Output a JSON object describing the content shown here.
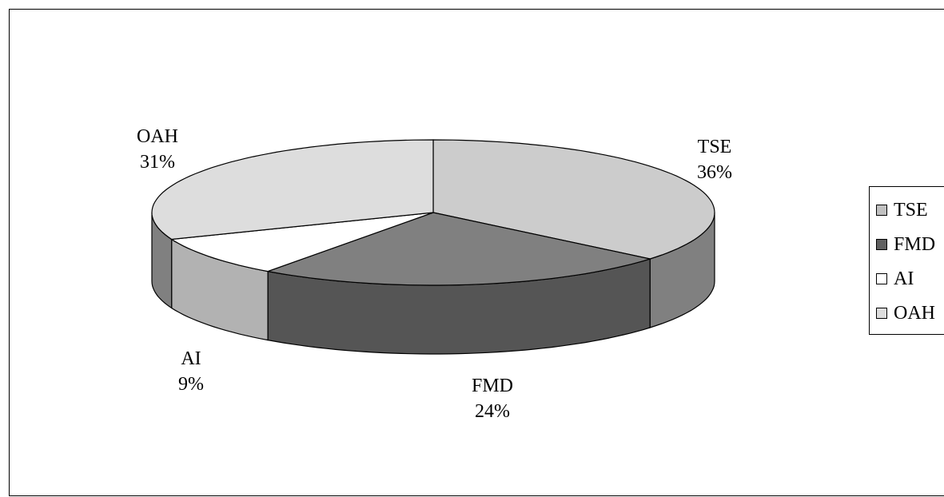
{
  "chart_data": {
    "type": "pie",
    "three_d": true,
    "title": "",
    "start_angle_deg": 0,
    "direction": "clockwise",
    "legend_position": "right",
    "slices": [
      {
        "label": "TSE",
        "value": 36,
        "display": "36%",
        "top_color": "#cccccc",
        "side_color": "#808080",
        "legend_color": "#c0c0c0"
      },
      {
        "label": "FMD",
        "value": 24,
        "display": "24%",
        "top_color": "#808080",
        "side_color": "#555555",
        "legend_color": "#606060"
      },
      {
        "label": "AI",
        "value": 9,
        "display": "9%",
        "top_color": "#ffffff",
        "side_color": "#b2b2b2",
        "legend_color": "#ffffff"
      },
      {
        "label": "OAH",
        "value": 31,
        "display": "31%",
        "top_color": "#dddddd",
        "side_color": "#808080",
        "legend_color": "#dddddd"
      }
    ]
  }
}
